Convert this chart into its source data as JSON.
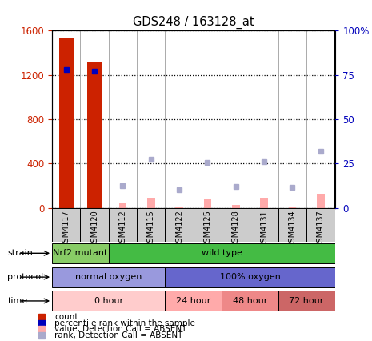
{
  "title": "GDS248 / 163128_at",
  "samples": [
    "GSM4117",
    "GSM4120",
    "GSM4112",
    "GSM4115",
    "GSM4122",
    "GSM4125",
    "GSM4128",
    "GSM4131",
    "GSM4134",
    "GSM4137"
  ],
  "count_values": [
    1530,
    1310,
    null,
    null,
    null,
    null,
    null,
    null,
    null,
    null
  ],
  "percentile_values": [
    78,
    77,
    null,
    null,
    null,
    null,
    null,
    null,
    null,
    null
  ],
  "absent_value_bars": [
    null,
    null,
    45,
    90,
    15,
    85,
    25,
    90,
    15,
    130
  ],
  "absent_rank_dots_left_scale": [
    null,
    null,
    200,
    440,
    165,
    410,
    195,
    415,
    185,
    510
  ],
  "ylim_left": [
    0,
    1600
  ],
  "ylim_right": [
    0,
    100
  ],
  "yticks_left": [
    0,
    400,
    800,
    1200,
    1600
  ],
  "yticks_right": [
    0,
    25,
    50,
    75,
    100
  ],
  "yticklabels_right": [
    "0",
    "25",
    "50",
    "75",
    "100%"
  ],
  "bar_color_present": "#cc2200",
  "bar_color_absent": "#ffaaaa",
  "dot_color_present": "#0000bb",
  "dot_color_absent": "#aaaacc",
  "strain_labels": [
    {
      "text": "Nrf2 mutant",
      "start": 0,
      "end": 2,
      "color": "#88cc66"
    },
    {
      "text": "wild type",
      "start": 2,
      "end": 10,
      "color": "#44bb44"
    }
  ],
  "protocol_labels": [
    {
      "text": "normal oxygen",
      "start": 0,
      "end": 4,
      "color": "#9999dd"
    },
    {
      "text": "100% oxygen",
      "start": 4,
      "end": 10,
      "color": "#6666cc"
    }
  ],
  "time_labels": [
    {
      "text": "0 hour",
      "start": 0,
      "end": 4,
      "color": "#ffcccc"
    },
    {
      "text": "24 hour",
      "start": 4,
      "end": 6,
      "color": "#ffaaaa"
    },
    {
      "text": "48 hour",
      "start": 6,
      "end": 8,
      "color": "#ee8888"
    },
    {
      "text": "72 hour",
      "start": 8,
      "end": 10,
      "color": "#cc6666"
    }
  ],
  "legend_items": [
    {
      "label": "count",
      "color": "#cc2200"
    },
    {
      "label": "percentile rank within the sample",
      "color": "#0000bb"
    },
    {
      "label": "value, Detection Call = ABSENT",
      "color": "#ffaaaa"
    },
    {
      "label": "rank, Detection Call = ABSENT",
      "color": "#aaaacc"
    }
  ],
  "row_labels": [
    "strain",
    "protocol",
    "time"
  ],
  "bg_color": "#ffffff",
  "tick_color_left": "#cc2200",
  "tick_color_right": "#0000bb"
}
